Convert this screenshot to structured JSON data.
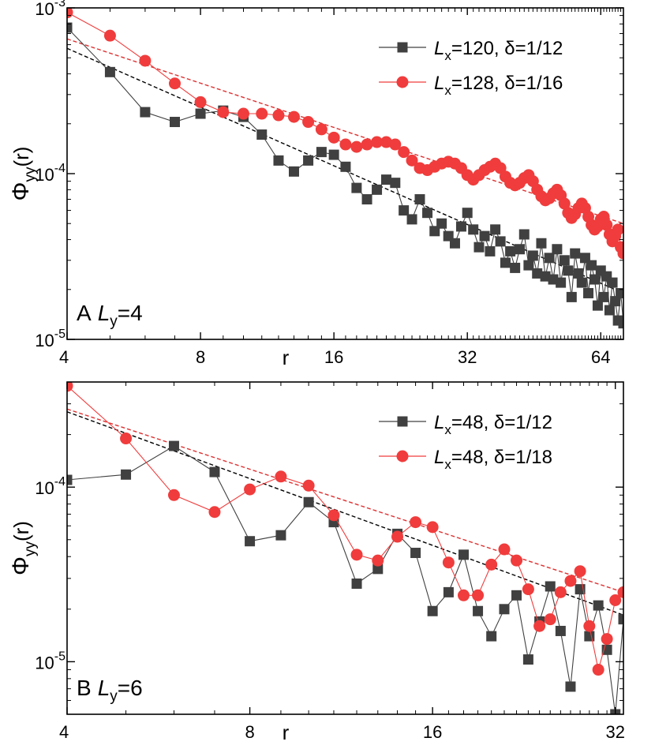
{
  "chart_data": [
    {
      "type": "scatter",
      "panel_label": "A",
      "panel_L_symbol": "L",
      "panel_L_sub": "y",
      "panel_L_value": "=4",
      "xlabel": "r",
      "ylabel_main": "Φ",
      "ylabel_sub": "yy",
      "ylabel_arg": "(r)",
      "x_scale": "log",
      "y_scale": "log",
      "xlim": [
        4,
        72
      ],
      "ylim": [
        1e-05,
        0.001
      ],
      "x_ticks": [
        4,
        8,
        16,
        32,
        64
      ],
      "x_tick_labels": [
        "4",
        "8",
        "16",
        "32",
        "64"
      ],
      "y_ticks": [
        1e-05,
        0.0001,
        0.001
      ],
      "y_tick_base": "10",
      "y_tick_exps": [
        "-5",
        "-4",
        "-3"
      ],
      "legend_position": "top-right",
      "series": [
        {
          "legend_L": "L",
          "legend_sub": "x",
          "legend_rest": "=120, δ=1/12",
          "color": "#404040",
          "marker": "square",
          "x": [
            4,
            5,
            6,
            7,
            8,
            9,
            10,
            11,
            12,
            13,
            14,
            15,
            16,
            17,
            18,
            19,
            20,
            21,
            22,
            23,
            24,
            25,
            26,
            27,
            28,
            29,
            30,
            31,
            32,
            33,
            34,
            35,
            36,
            37,
            38,
            39,
            40,
            41,
            42,
            43,
            44,
            45,
            46,
            47,
            48,
            49,
            50,
            51,
            52,
            53,
            54,
            55,
            56,
            57,
            58,
            59,
            60,
            61,
            62,
            63,
            64,
            65,
            66,
            67,
            68,
            69,
            70,
            71,
            72
          ],
          "y": [
            0.00076,
            0.00041,
            0.000235,
            0.000205,
            0.00023,
            0.00024,
            0.00022,
            0.000172,
            0.00012,
            0.000103,
            0.00012,
            0.000135,
            0.00013,
            0.00011,
            8.2e-05,
            7e-05,
            8e-05,
            9.2e-05,
            8.8e-05,
            6e-05,
            5.3e-05,
            7e-05,
            5.8e-05,
            4.5e-05,
            5e-05,
            4.2e-05,
            3.8e-05,
            4.8e-05,
            5.8e-05,
            4.6e-05,
            3.6e-05,
            4.2e-05,
            3.4e-05,
            4.6e-05,
            3.9e-05,
            2.9e-05,
            3.4e-05,
            2.7e-05,
            3.5e-05,
            4.3e-05,
            2.8e-05,
            3.2e-05,
            2.5e-05,
            3.8e-05,
            2.4e-05,
            3.1e-05,
            2.3e-05,
            3.5e-05,
            2.2e-05,
            3e-05,
            2.6e-05,
            1.8e-05,
            3.3e-05,
            2.5e-05,
            2.2e-05,
            3.1e-05,
            1.9e-05,
            2.8e-05,
            2.3e-05,
            1.6e-05,
            2.6e-05,
            1.8e-05,
            2.4e-05,
            1.5e-05,
            2.2e-05,
            1.7e-05,
            1.3e-05,
            1.9e-05,
            1.25e-05
          ]
        },
        {
          "legend_L": "L",
          "legend_sub": "x",
          "legend_rest": "=128, δ=1/16",
          "color": "#f03c3c",
          "marker": "circle",
          "x": [
            4,
            5,
            6,
            7,
            8,
            9,
            10,
            11,
            12,
            13,
            14,
            15,
            16,
            17,
            18,
            19,
            20,
            21,
            22,
            23,
            24,
            25,
            26,
            27,
            28,
            29,
            30,
            31,
            32,
            33,
            34,
            35,
            36,
            37,
            38,
            39,
            40,
            41,
            42,
            43,
            44,
            45,
            46,
            47,
            48,
            49,
            50,
            51,
            52,
            53,
            54,
            55,
            56,
            57,
            58,
            59,
            60,
            61,
            62,
            63,
            64,
            65,
            66,
            67,
            68,
            69,
            70,
            71,
            72
          ],
          "y": [
            0.00094,
            0.00068,
            0.00048,
            0.00035,
            0.00027,
            0.000235,
            0.00023,
            0.00023,
            0.000225,
            0.00022,
            0.000205,
            0.000185,
            0.000165,
            0.00015,
            0.000145,
            0.00015,
            0.000155,
            0.000155,
            0.00015,
            0.000135,
            0.00012,
            0.000108,
            0.000105,
            0.00011,
            0.000115,
            0.000118,
            0.000115,
            0.000108,
            9.8e-05,
            9.2e-05,
            9.8e-05,
            0.000105,
            0.00011,
            0.000115,
            0.000108,
            9.6e-05,
            8.8e-05,
            8.5e-05,
            8.8e-05,
            9.4e-05,
            9.8e-05,
            9e-05,
            8e-05,
            7.3e-05,
            6.9e-05,
            7.1e-05,
            7.6e-05,
            8e-05,
            7.4e-05,
            6.6e-05,
            5.8e-05,
            5.4e-05,
            5.7e-05,
            6.2e-05,
            6.6e-05,
            6.2e-05,
            5.5e-05,
            4.9e-05,
            4.6e-05,
            4.8e-05,
            5.3e-05,
            5.5e-05,
            4.9e-05,
            4.3e-05,
            3.9e-05,
            4.2e-05,
            4.6e-05,
            3.6e-05,
            3.3e-05
          ]
        }
      ],
      "fit_lines": [
        {
          "color": "#000000",
          "x": [
            4,
            72
          ],
          "y": [
            0.00057,
            1.9e-05
          ]
        },
        {
          "color": "#e03030",
          "x": [
            4,
            72
          ],
          "y": [
            0.00065,
            5e-05
          ]
        }
      ]
    },
    {
      "type": "scatter",
      "panel_label": "B",
      "panel_L_symbol": "L",
      "panel_L_sub": "y",
      "panel_L_value": "=6",
      "xlabel": "r",
      "ylabel_main": "Φ",
      "ylabel_sub": "yy",
      "ylabel_arg": "(r)",
      "x_scale": "log",
      "y_scale": "log",
      "xlim": [
        4,
        33
      ],
      "ylim": [
        5e-06,
        0.0004
      ],
      "x_ticks": [
        4,
        8,
        16,
        32
      ],
      "x_tick_labels": [
        "4",
        "8",
        "16",
        "32"
      ],
      "y_ticks": [
        1e-05,
        0.0001
      ],
      "y_tick_base": "10",
      "y_tick_exps": [
        "-5",
        "-4"
      ],
      "legend_position": "top-right",
      "series": [
        {
          "legend_L": "L",
          "legend_sub": "x",
          "legend_rest": "=48, δ=1/12",
          "color": "#404040",
          "marker": "square",
          "x": [
            4,
            5,
            6,
            7,
            8,
            9,
            10,
            11,
            12,
            13,
            14,
            15,
            16,
            17,
            18,
            19,
            20,
            21,
            22,
            23,
            24,
            25,
            26,
            27,
            28,
            29,
            30,
            31,
            32,
            33
          ],
          "y": [
            0.00011,
            0.000118,
            0.000172,
            0.000122,
            4.9e-05,
            5.3e-05,
            8.2e-05,
            6.3e-05,
            2.8e-05,
            3.4e-05,
            5.4e-05,
            4.2e-05,
            1.95e-05,
            2.5e-05,
            4.1e-05,
            1.95e-05,
            1.4e-05,
            2e-05,
            2.4e-05,
            1.03e-05,
            1.7e-05,
            2.7e-05,
            1.5e-05,
            7.2e-06,
            2.6e-05,
            1.4e-05,
            2.1e-05,
            1.17e-05,
            5e-06,
            1.75e-05
          ]
        },
        {
          "legend_L": "L",
          "legend_sub": "x",
          "legend_rest": "=48, δ=1/18",
          "color": "#f03c3c",
          "marker": "circle",
          "x": [
            4,
            5,
            6,
            7,
            8,
            9,
            10,
            11,
            12,
            13,
            14,
            15,
            16,
            17,
            18,
            19,
            20,
            21,
            22,
            23,
            24,
            25,
            26,
            27,
            28,
            29,
            30,
            31,
            32,
            33
          ],
          "y": [
            0.00038,
            0.00019,
            9e-05,
            7.2e-05,
            9.7e-05,
            0.000115,
            0.000102,
            6.9e-05,
            4.1e-05,
            3.8e-05,
            5.2e-05,
            6.3e-05,
            5.9e-05,
            3.7e-05,
            2.4e-05,
            2.4e-05,
            3.6e-05,
            4.4e-05,
            3.8e-05,
            2.6e-05,
            1.6e-05,
            1.75e-05,
            2.5e-05,
            2.9e-05,
            3.3e-05,
            1.6e-05,
            9e-06,
            1.35e-05,
            2.25e-05,
            2.5e-05
          ]
        }
      ],
      "fit_lines": [
        {
          "color": "#000000",
          "x": [
            4,
            33
          ],
          "y": [
            0.00027,
            1.85e-05
          ]
        },
        {
          "color": "#e03030",
          "x": [
            4,
            33
          ],
          "y": [
            0.00028,
            2.5e-05
          ]
        }
      ]
    }
  ]
}
